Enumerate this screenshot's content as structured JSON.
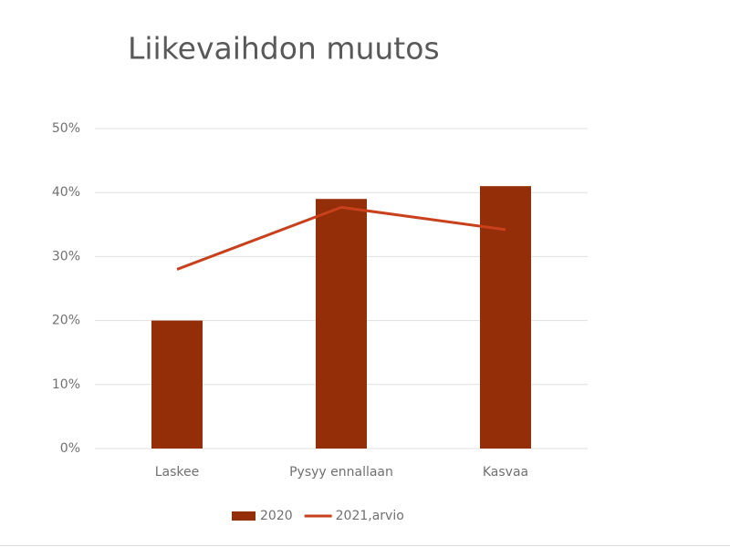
{
  "chart_data": {
    "type": "combo",
    "title": "Liikevaihdon muutos",
    "categories": [
      "Laskee",
      "Pysyy ennallaan",
      "Kasvaa"
    ],
    "series": [
      {
        "name": "2020",
        "type": "bar",
        "color": "#942e08",
        "values": [
          20,
          39,
          41
        ]
      },
      {
        "name": "2021,arvio",
        "type": "line",
        "color": "#c8401c",
        "values": [
          28,
          37.7,
          34.2
        ]
      }
    ],
    "ylim": [
      0,
      50
    ],
    "yticks": [
      {
        "value": 0,
        "label": "0%"
      },
      {
        "value": 10,
        "label": "10%"
      },
      {
        "value": 20,
        "label": "20%"
      },
      {
        "value": 30,
        "label": "30%"
      },
      {
        "value": 40,
        "label": "40%"
      },
      {
        "value": 50,
        "label": "50%"
      }
    ],
    "grid": true,
    "legend": "bottom"
  }
}
